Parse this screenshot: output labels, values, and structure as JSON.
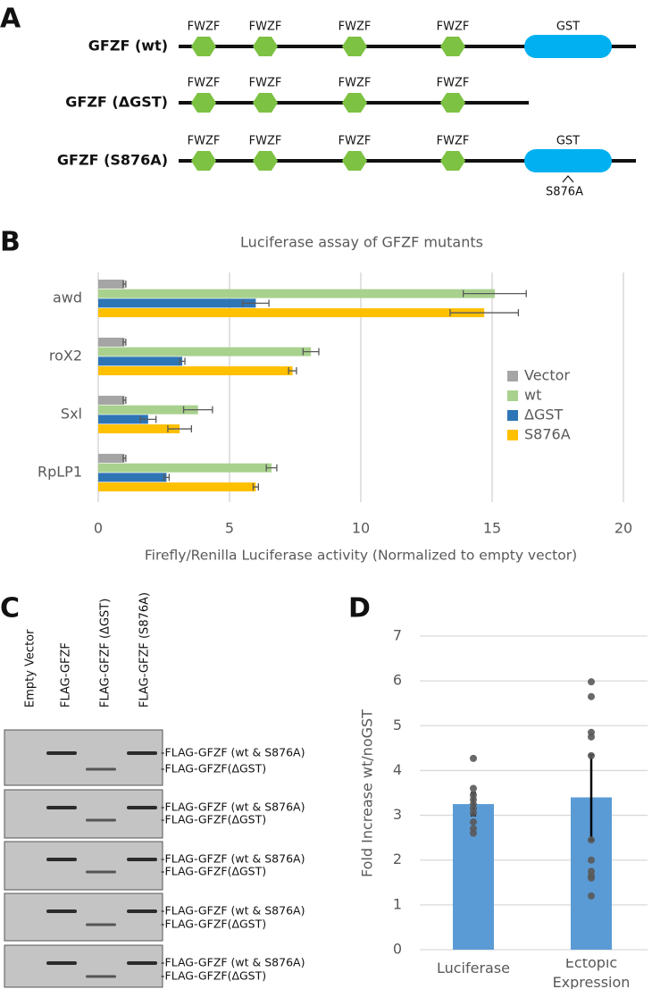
{
  "panels": [
    "A",
    "B",
    "C",
    "D"
  ],
  "diagram": {
    "constructs": [
      {
        "name": "GFZF (wt)",
        "domains": [
          "FWZF",
          "FWZF",
          "FWZF",
          "FWZF",
          "GST"
        ]
      },
      {
        "name": "GFZF (ΔGST)",
        "domains": [
          "FWZF",
          "FWZF",
          "FWZF",
          "FWZF"
        ]
      },
      {
        "name": "GFZF (S876A)",
        "domains": [
          "FWZF",
          "FWZF",
          "FWZF",
          "FWZF",
          "GST"
        ],
        "mutation": "S876A"
      }
    ]
  },
  "blot": {
    "lanes": [
      "Empty Vector",
      "FLAG-GFZF",
      "FLAG-GFZF (ΔGST)",
      "FLAG-GFZF (S876A)"
    ],
    "rows": [
      {
        "labels": [
          "-FLAG-GFZF (wt & S876A)",
          "-FLAG-GFZF(ΔGST)"
        ]
      },
      {
        "labels": [
          "-FLAG-GFZF (wt & S876A)",
          "-FLAG-GFZF(ΔGST)"
        ]
      },
      {
        "labels": [
          "-FLAG-GFZF (wt & S876A)",
          "-FLAG-GFZF(ΔGST)"
        ]
      },
      {
        "labels": [
          "-FLAG-GFZF (wt & S876A)",
          "-FLAG-GFZF(ΔGST)"
        ]
      },
      {
        "labels": [
          "-FLAG-GFZF (wt & S876A)",
          "-FLAG-GFZF(ΔGST)"
        ]
      }
    ]
  },
  "chart_data": [
    {
      "type": "bar",
      "orientation": "horizontal",
      "title": "Luciferase assay of GFZF mutants",
      "xlabel": "Firefly/Renilla Luciferase activity (Normalized to empty vector)",
      "categories": [
        "awd",
        "roX2",
        "Sxl",
        "RpLP1"
      ],
      "series": [
        {
          "name": "Vector",
          "color": "#a5a5a5",
          "values": [
            1,
            1,
            1,
            1
          ],
          "errors": [
            0.05,
            0.05,
            0.05,
            0.05
          ]
        },
        {
          "name": "wt",
          "color": "#a9d18e",
          "values": [
            15.1,
            8.1,
            3.8,
            6.6
          ],
          "errors": [
            1.2,
            0.3,
            0.55,
            0.2
          ]
        },
        {
          "name": "ΔGST",
          "color": "#2e75b6",
          "values": [
            6.0,
            3.2,
            1.9,
            2.6
          ],
          "errors": [
            0.5,
            0.1,
            0.3,
            0.1
          ]
        },
        {
          "name": "S876A",
          "color": "#ffc000",
          "values": [
            14.7,
            7.4,
            3.1,
            6.0
          ],
          "errors": [
            1.3,
            0.15,
            0.45,
            0.1
          ]
        }
      ],
      "xlim": [
        0,
        20
      ],
      "xticks": [
        0,
        5,
        10,
        15,
        20
      ],
      "grid": true,
      "legend": "right"
    },
    {
      "type": "bar",
      "ylabel": "Fold Increase wt/noGST",
      "categories": [
        "Luciferase",
        "Ectopic Expression"
      ],
      "values": [
        3.25,
        3.4
      ],
      "errors": [
        0.25,
        0.95
      ],
      "points": [
        [
          4.27,
          3.6,
          3.45,
          3.35,
          3.25,
          3.15,
          3.05,
          2.85,
          2.7,
          2.6
        ],
        [
          5.98,
          5.65,
          4.85,
          4.75,
          4.33,
          2.45,
          2.0,
          1.75,
          1.65,
          1.6,
          1.2
        ]
      ],
      "color": "#5b9bd5",
      "point_color": "#595959",
      "ylim": [
        0,
        7
      ],
      "yticks": [
        0,
        1,
        2,
        3,
        4,
        5,
        6,
        7
      ],
      "grid": true
    }
  ]
}
